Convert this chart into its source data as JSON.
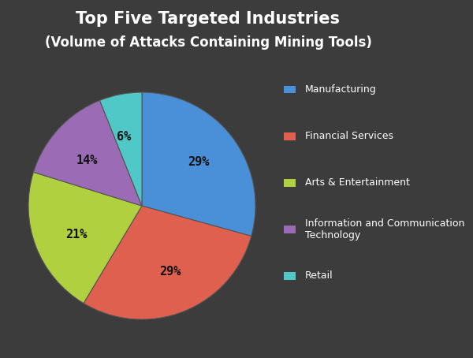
{
  "title_line1": "Top Five Targeted Industries",
  "title_line2": "(Volume of Attacks Containing Mining Tools)",
  "values": [
    29,
    29,
    21,
    14,
    6
  ],
  "colors": [
    "#4A90D9",
    "#E06050",
    "#B0D040",
    "#9B6BB5",
    "#50C8C8"
  ],
  "background_color": "#3C3C3C",
  "text_color": "#FFFFFF",
  "pct_labels": [
    "29%",
    "29%",
    "21%",
    "14%",
    "6%"
  ],
  "legend_labels": [
    "Manufacturing",
    "Financial Services",
    "Arts & Entertainment",
    "Information and Communication\nTechnology",
    "Retail"
  ],
  "legend_colors": [
    "#4A90D9",
    "#E06050",
    "#B0D040",
    "#9B6BB5",
    "#50C8C8"
  ],
  "title_fontsize": 15,
  "subtitle_fontsize": 12
}
